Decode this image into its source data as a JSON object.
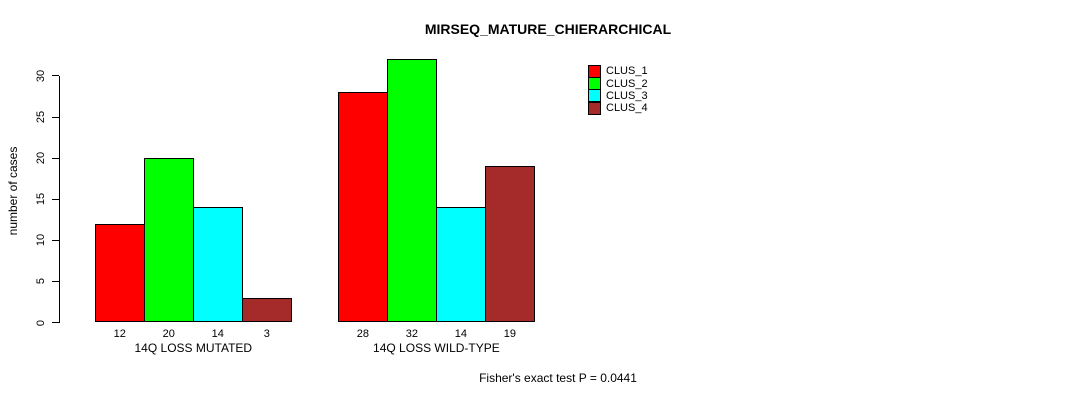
{
  "title": "MIRSEQ_MATURE_CHIERARCHICAL",
  "footer": "Fisher's exact test P = 0.0441",
  "chart_data": {
    "type": "bar",
    "title": "MIRSEQ_MATURE_CHIERARCHICAL",
    "xlabel": "",
    "ylabel": "number of cases",
    "categories": [
      "14Q LOSS MUTATED",
      "14Q LOSS WILD-TYPE"
    ],
    "series": [
      {
        "name": "CLUS_1",
        "color": "#FF0000",
        "values": [
          12,
          28
        ]
      },
      {
        "name": "CLUS_2",
        "color": "#00FF00",
        "values": [
          20,
          32
        ]
      },
      {
        "name": "CLUS_3",
        "color": "#00FFFF",
        "values": [
          14,
          14
        ]
      },
      {
        "name": "CLUS_4",
        "color": "#A52A2A",
        "values": [
          3,
          19
        ]
      }
    ],
    "yticks": [
      0,
      5,
      10,
      15,
      20,
      25,
      30
    ],
    "ylim": [
      0,
      32
    ],
    "show_values_under_bars": true,
    "annotation": "Fisher's exact test P = 0.0441",
    "legend_entries": [
      "CLUS_1",
      "CLUS_2",
      "CLUS_3",
      "CLUS_4"
    ],
    "legend_position": "top-right",
    "grid": false,
    "bar_border_color": "#000000",
    "background_color": "#FFFFFF",
    "axis_color": "#000000"
  }
}
